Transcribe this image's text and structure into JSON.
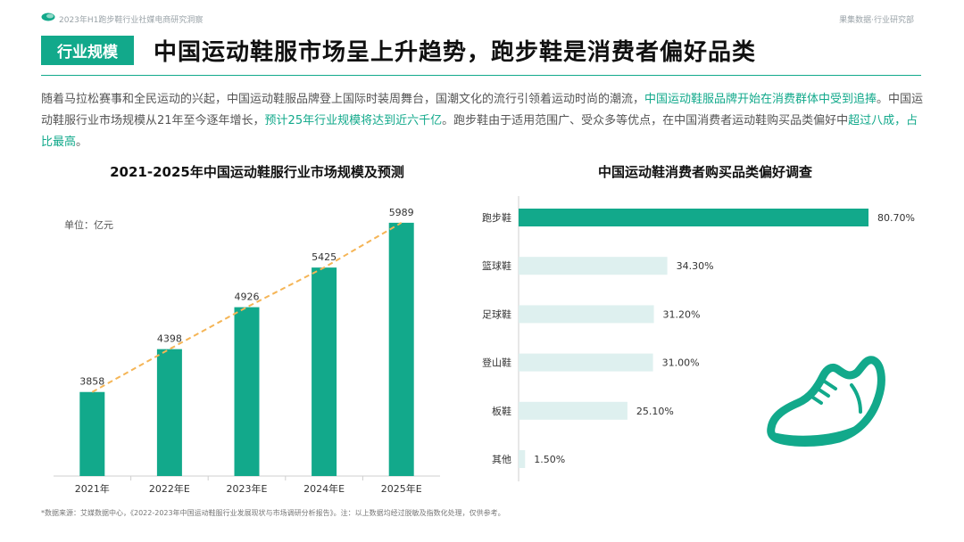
{
  "header": {
    "report_title": "2023年H1跑步鞋行业社媒电商研究洞察",
    "org": "果集数据·行业研究部"
  },
  "section": {
    "tag": "行业规模",
    "headline": "中国运动鞋服市场呈上升趋势，跑步鞋是消费者偏好品类"
  },
  "intro": {
    "p1": "随着马拉松赛事和全民运动的兴起，中国运动鞋服品牌登上国际时装周舞台，国潮文化的流行引领着运动时尚的潮流，",
    "h1": "中国运动鞋服品牌开始在消费群体中受到追捧",
    "p2": "。中国运动鞋服行业市场规模从21年至今逐年增长，",
    "h2": "预计25年行业规模将达到近六千亿",
    "p3": "。跑步鞋由于适用范围广、受众多等优点，在中国消费者运动鞋购买品类偏好中",
    "h3": "超过八成，占比最高",
    "p4": "。"
  },
  "colors": {
    "accent": "#12a98b",
    "bar_light": "#def0ef",
    "trend": "#f5b556"
  },
  "chart_data": [
    {
      "type": "bar",
      "title": "2021-2025年中国运动鞋服行业市场规模及预测",
      "unit_label": "单位：亿元",
      "categories": [
        "2021年",
        "2022年E",
        "2023年E",
        "2024年E",
        "2025年E"
      ],
      "values": [
        3858,
        4398,
        4926,
        5425,
        5989
      ],
      "ylim": [
        2800,
        6100
      ],
      "trend_line": true,
      "grid": false
    },
    {
      "type": "bar",
      "orientation": "horizontal",
      "title": "中国运动鞋消费者购买品类偏好调查",
      "categories": [
        "跑步鞋",
        "篮球鞋",
        "足球鞋",
        "登山鞋",
        "板鞋",
        "其他"
      ],
      "values": [
        80.7,
        34.3,
        31.2,
        31.0,
        25.1,
        1.5
      ],
      "value_labels": [
        "80.70%",
        "34.30%",
        "31.20%",
        "31.00%",
        "25.10%",
        "1.50%"
      ],
      "xlim": [
        0,
        100
      ],
      "highlight_index": 0
    }
  ],
  "footnote": "*数据来源：艾媒数据中心，《2022-2023年中国运动鞋服行业发展现状与市场调研分析报告》。注：以上数据均经过脱敏及指数化处理，仅供参考。",
  "icons": [
    "logo-icon",
    "running-shoe-icon"
  ]
}
